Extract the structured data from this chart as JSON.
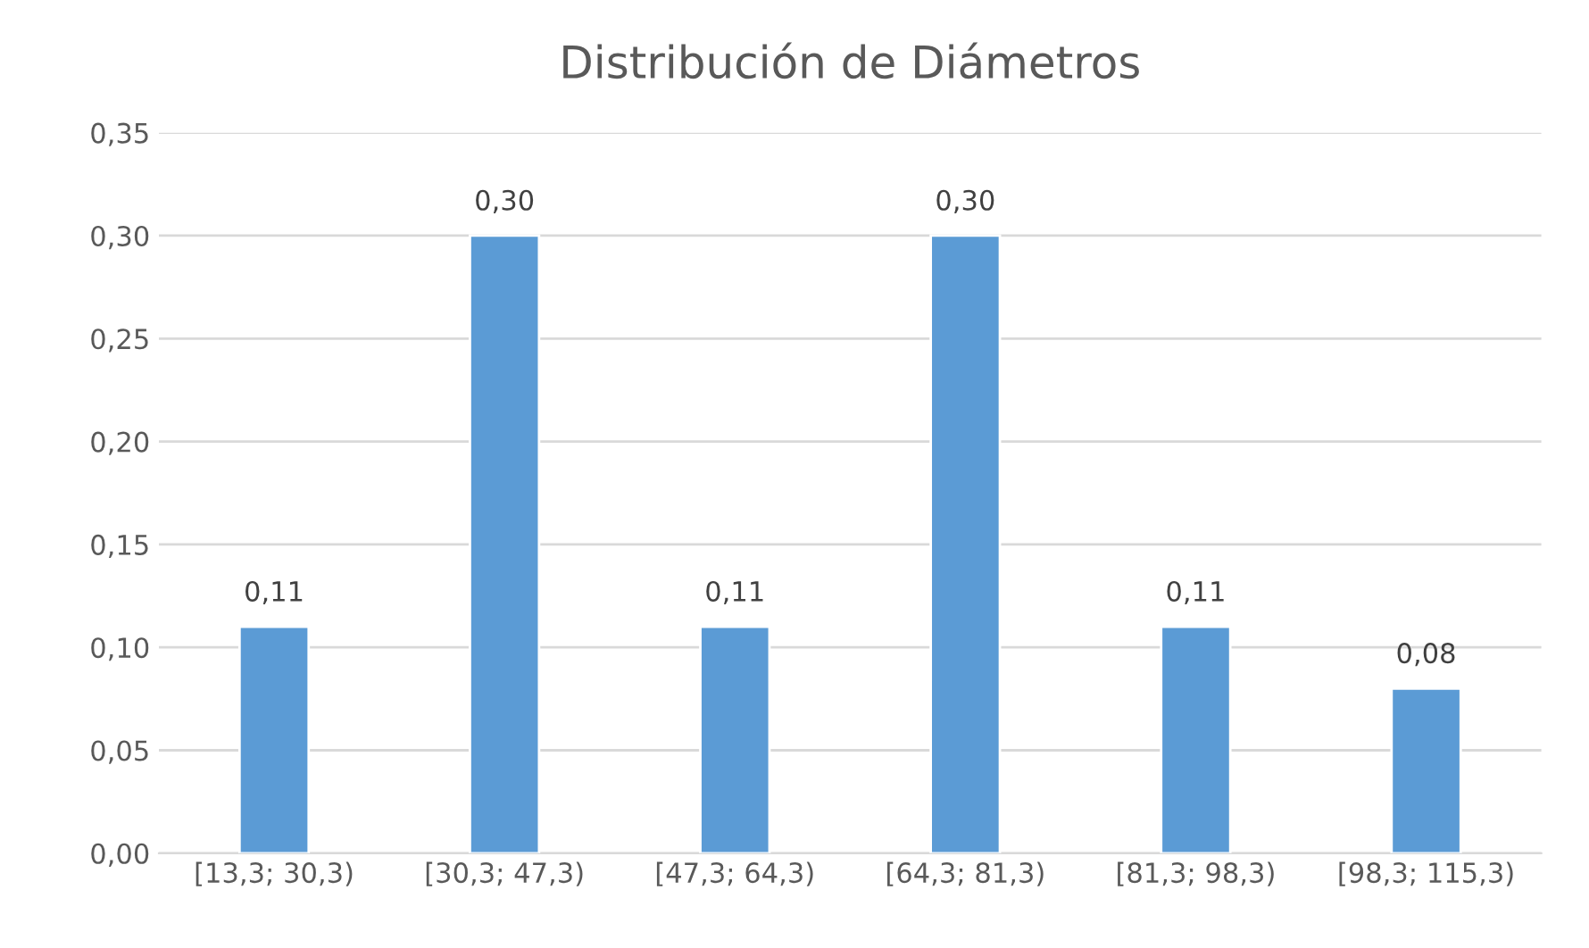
{
  "chart_data": {
    "type": "bar",
    "title": "Distribución de Diámetros",
    "categories": [
      "[13,3; 30,3)",
      "[30,3; 47,3)",
      "[47,3; 64,3)",
      "[64,3; 81,3)",
      "[81,3; 98,3)",
      "[98,3; 115,3)"
    ],
    "values": [
      0.11,
      0.3,
      0.11,
      0.3,
      0.11,
      0.08
    ],
    "value_labels": [
      "0,11",
      "0,30",
      "0,11",
      "0,30",
      "0,11",
      "0,08"
    ],
    "color": "#5b9bd5",
    "ylim": [
      0,
      0.35
    ],
    "yticks": [
      {
        "value": 0,
        "label": "0,00"
      },
      {
        "value": 0.05,
        "label": "0,05"
      },
      {
        "value": 0.1,
        "label": "0,10"
      },
      {
        "value": 0.15,
        "label": "0,15"
      },
      {
        "value": 0.2,
        "label": "0,20"
      },
      {
        "value": 0.25,
        "label": "0,25"
      },
      {
        "value": 0.3,
        "label": "0,30"
      },
      {
        "value": 0.35,
        "label": "0,35"
      }
    ],
    "grid": "y"
  }
}
